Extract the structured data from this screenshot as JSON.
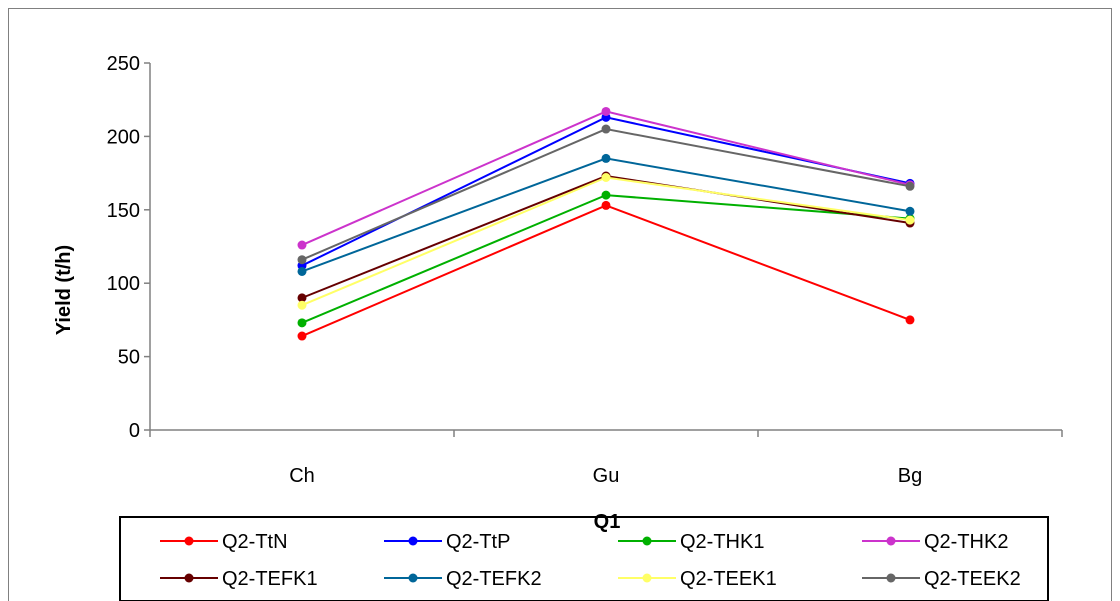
{
  "chart_data": {
    "type": "line",
    "title": "",
    "xlabel": "Q1",
    "ylabel": "Yield (t/h)",
    "categories": [
      "Ch",
      "Gu",
      "Bg"
    ],
    "ylim": [
      0,
      250
    ],
    "yticks": [
      "0",
      "50",
      "100",
      "150",
      "200",
      "250"
    ],
    "grid": false,
    "legend_position": "bottom",
    "series": [
      {
        "name": "Q2-TtN",
        "color": "#ff0000",
        "values": [
          64,
          153,
          75
        ]
      },
      {
        "name": "Q2-TtP",
        "color": "#0000ff",
        "values": [
          112,
          213,
          168
        ]
      },
      {
        "name": "Q2-THK1",
        "color": "#00b000",
        "values": [
          73,
          160,
          144
        ]
      },
      {
        "name": "Q2-THK2",
        "color": "#cc33cc",
        "values": [
          126,
          217,
          167
        ]
      },
      {
        "name": "Q2-TEFK1",
        "color": "#660000",
        "values": [
          90,
          173,
          141
        ]
      },
      {
        "name": "Q2-TEFK2",
        "color": "#006699",
        "values": [
          108,
          185,
          149
        ]
      },
      {
        "name": "Q2-TEEK1",
        "color": "#ffff66",
        "values": [
          85,
          172,
          143
        ]
      },
      {
        "name": "Q2-TEEK2",
        "color": "#666666",
        "values": [
          116,
          205,
          166
        ]
      }
    ]
  }
}
